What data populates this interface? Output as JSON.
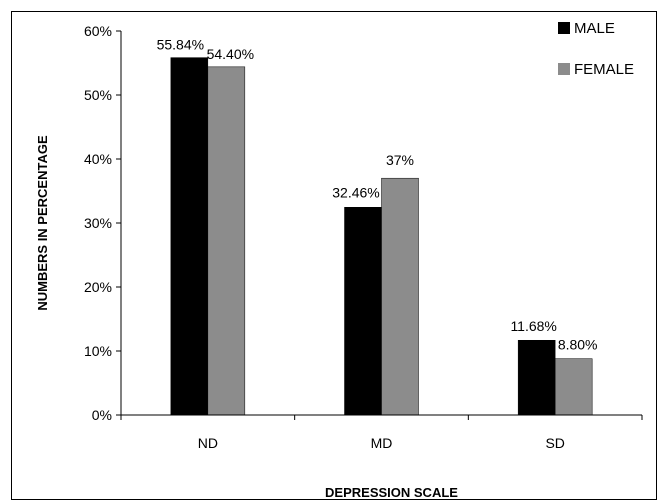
{
  "chart_data": {
    "type": "bar",
    "title": "",
    "xlabel": "DEPRESSION SCALE",
    "ylabel": "NUMBERS IN PERCENTAGE",
    "categories": [
      "ND",
      "MD",
      "SD"
    ],
    "ylim": [
      0,
      60
    ],
    "yticks": [
      "0%",
      "10%",
      "20%",
      "30%",
      "40%",
      "50%",
      "60%"
    ],
    "grid": false,
    "legend_position": "top-right",
    "series": [
      {
        "name": "MALE",
        "color": "#000000",
        "values": [
          55.84,
          32.46,
          11.68
        ],
        "labels": [
          "55.84%",
          "32.46%",
          "11.68%"
        ]
      },
      {
        "name": "FEMALE",
        "color": "#8c8c8c",
        "values": [
          54.4,
          37,
          8.8
        ],
        "labels": [
          "54.40%",
          "37%",
          "8.80%"
        ]
      }
    ]
  }
}
